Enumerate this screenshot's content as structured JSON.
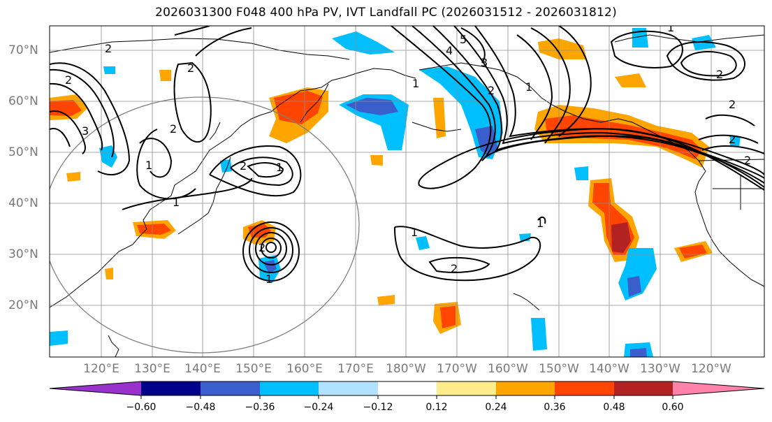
{
  "title": "2026031300 F048 400 hPa PV, IVT Landfall PC (2026031512 - 2026031812)",
  "lat_labels": [
    "70°N",
    "60°N",
    "50°N",
    "40°N",
    "30°N",
    "20°N"
  ],
  "lon_labels": [
    "120°E",
    "130°E",
    "140°E",
    "150°E",
    "160°E",
    "170°E",
    "180°W",
    "170°W",
    "160°W",
    "150°W",
    "140°W",
    "130°W",
    "120°W"
  ],
  "contour_labels": [
    "2",
    "2",
    "3",
    "2",
    "1",
    "2",
    "1",
    "2",
    "1",
    "2",
    "1",
    "1",
    "2",
    "1",
    "5",
    "4",
    "3",
    "2",
    "1",
    "2",
    "2",
    "1",
    "2",
    "2",
    "1"
  ],
  "colorbar": {
    "ticks": [
      "−0.60",
      "−0.48",
      "−0.36",
      "−0.24",
      "−0.12",
      "0.12",
      "0.24",
      "0.36",
      "0.48",
      "0.60"
    ],
    "colors": [
      "#9932cc",
      "#00008b",
      "#3a5fcd",
      "#00bfff",
      "#b0e2ff",
      "#ffffff",
      "#ffec8b",
      "#ffa500",
      "#ff4500",
      "#b22222",
      "#ff82ab"
    ]
  },
  "fill_colors": {
    "dark_blue": "#3a5fcd",
    "blue": "#00bfff",
    "light_blue": "#b0e2ff",
    "yellow": "#ffec8b",
    "orange": "#ffa500",
    "red_orange": "#ff4500",
    "dark_red": "#b22222"
  }
}
